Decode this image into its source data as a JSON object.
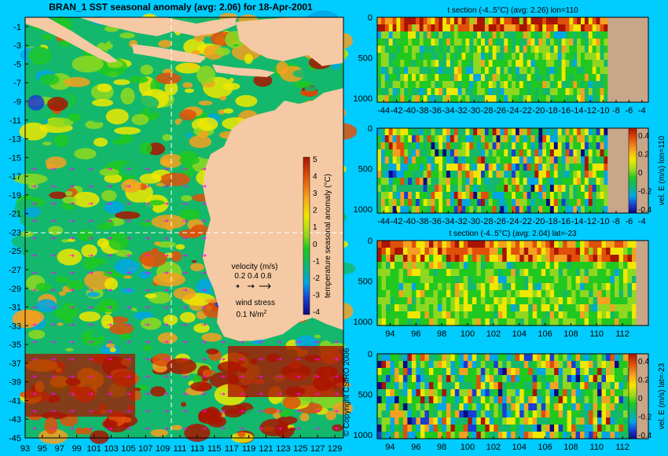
{
  "colors": {
    "background": "#00ccff",
    "land": "#f5c9a3",
    "land_section": "#c8a68a",
    "colormap": [
      "#0a0a80",
      "#1a3fd0",
      "#00a6e6",
      "#13b86c",
      "#20c820",
      "#90d820",
      "#f0e800",
      "#f5a020",
      "#e0500a",
      "#aa1400"
    ]
  },
  "map": {
    "title": "BRAN_1 SST seasonal anomaly (avg: 2.06) for 18-Apr-2001",
    "y_ticks": [
      "-1",
      "-3",
      "-5",
      "-7",
      "-9",
      "-11",
      "-13",
      "-15",
      "-17",
      "-19",
      "-21",
      "-23",
      "-25",
      "-27",
      "-29",
      "-31",
      "-33",
      "-35",
      "-37",
      "-39",
      "-41",
      "-43",
      "-45"
    ],
    "x_ticks": [
      "93",
      "95",
      "97",
      "99",
      "101",
      "103",
      "105",
      "107",
      "109",
      "111",
      "113",
      "115",
      "117",
      "119",
      "121",
      "123",
      "125",
      "127",
      "129"
    ],
    "colorbar_label": "temperature seasonal anomaly (°C)",
    "colorbar_ticks": [
      "5",
      "4",
      "3",
      "2",
      "1",
      "0",
      "-1",
      "-2",
      "-3",
      "-4"
    ],
    "velocity_legend": "velocity (m/s)",
    "velocity_scale": "0.2 0.4 0.8",
    "wind_legend": "wind stress",
    "wind_scale": "0.1 N/m",
    "wind_scale_sup": "2",
    "copyright": "© Copyright CSIRO 2006"
  },
  "panels": [
    {
      "title": "t section (-4..5°C) (avg: 2.26) lon=110",
      "x_ticks": [
        "-44",
        "-42",
        "-40",
        "-38",
        "-36",
        "-34",
        "-32",
        "-30",
        "-28",
        "-26",
        "-24",
        "-22",
        "-20",
        "-18",
        "-16",
        "-14",
        "-12",
        "-10",
        "-8",
        "-6",
        "-4"
      ],
      "y_ticks": [
        "0",
        "500",
        "1000"
      ]
    },
    {
      "title": "",
      "x_ticks": [
        "-44",
        "-42",
        "-40",
        "-38",
        "-36",
        "-34",
        "-32",
        "-30",
        "-28",
        "-26",
        "-24",
        "-22",
        "-20",
        "-18",
        "-16",
        "-14",
        "-12",
        "-10",
        "-8",
        "-6",
        "-4"
      ],
      "y_ticks": [
        "0",
        "500",
        "1000"
      ],
      "colorbar_label": "vel. E (m/s) lon=110",
      "colorbar_ticks": [
        "0.4",
        "0.2",
        "0",
        "-0.2",
        "-0.4"
      ]
    },
    {
      "title": "t section (-4..5°C) (avg: 2.04) lat=-23",
      "x_ticks": [
        "94",
        "96",
        "98",
        "100",
        "102",
        "104",
        "106",
        "108",
        "110",
        "112"
      ],
      "y_ticks": [
        "0",
        "500",
        "1000"
      ]
    },
    {
      "title": "",
      "x_ticks": [
        "94",
        "96",
        "98",
        "100",
        "102",
        "104",
        "106",
        "108",
        "110",
        "112"
      ],
      "y_ticks": [
        "0",
        "500",
        "1000"
      ],
      "colorbar_label": "vel. E (m/s) lat=-23",
      "colorbar_ticks": [
        "0.4",
        "0.2",
        "0",
        "-0.2",
        "-0.4"
      ]
    }
  ],
  "chart_data": [
    {
      "type": "heatmap",
      "title": "BRAN_1 SST seasonal anomaly (avg: 2.06) for 18-Apr-2001",
      "xlabel": "",
      "ylabel": "",
      "x_range": [
        93,
        130
      ],
      "y_range": [
        -45,
        0
      ],
      "color_range": [
        -4,
        5
      ],
      "colorbar_label": "temperature seasonal anomaly (°C)"
    },
    {
      "type": "heatmap",
      "title": "t section (-4..5°C) (avg: 2.26) lon=110",
      "x_range": [
        -45,
        -3
      ],
      "y_range": [
        1050,
        0
      ],
      "color_range": [
        -4,
        5
      ]
    },
    {
      "type": "heatmap",
      "title": "",
      "x_range": [
        -45,
        -3
      ],
      "y_range": [
        1050,
        0
      ],
      "color_range": [
        -0.4,
        0.4
      ],
      "colorbar_label": "vel. E (m/s) lon=110"
    },
    {
      "type": "heatmap",
      "title": "t section (-4..5°C) (avg: 2.04) lat=-23",
      "x_range": [
        93,
        114
      ],
      "y_range": [
        1050,
        0
      ],
      "color_range": [
        -4,
        5
      ]
    },
    {
      "type": "heatmap",
      "title": "",
      "x_range": [
        93,
        114
      ],
      "y_range": [
        1050,
        0
      ],
      "color_range": [
        -0.4,
        0.4
      ],
      "colorbar_label": "vel. E (m/s) lat=-23"
    }
  ]
}
